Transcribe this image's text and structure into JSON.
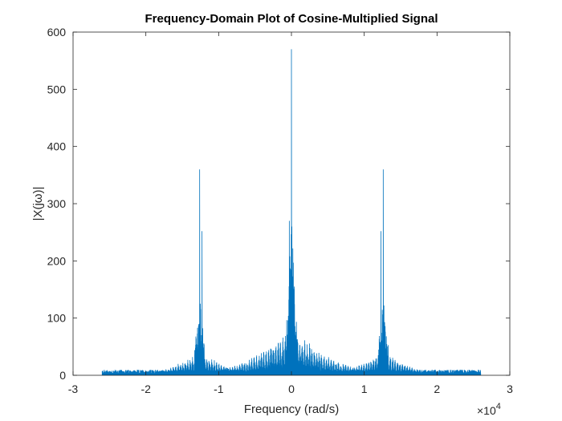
{
  "chart_data": {
    "type": "line",
    "title": "Frequency-Domain Plot of Cosine-Multiplied Signal",
    "xlabel": "Frequency (rad/s)",
    "ylabel": "|X(jω)|",
    "xlim": [
      -3,
      3
    ],
    "ylim": [
      0,
      600
    ],
    "x_scale_factor_label": "×10",
    "x_scale_factor_exponent": "4",
    "xticks": [
      "-3",
      "-2",
      "-1",
      "0",
      "1",
      "2",
      "3"
    ],
    "yticks": [
      "0",
      "100",
      "200",
      "300",
      "400",
      "500",
      "600"
    ],
    "grid": false,
    "series_color": "#0072BD",
    "signal_range": [
      -2.6,
      2.6
    ],
    "lobes": [
      {
        "center": -1.26,
        "peak": 360,
        "second_peak": 252,
        "second_offset": 0.03,
        "near": [
          130,
          100,
          85,
          70,
          60
        ],
        "sidelobe_max": 40,
        "sidelobe_spread": 0.85
      },
      {
        "center": 0.0,
        "peak": 570,
        "second_peak": 270,
        "second_offset": -0.03,
        "near": [
          270,
          250,
          170,
          130,
          100
        ],
        "sidelobe_max": 75,
        "sidelobe_spread": 1.3
      },
      {
        "center": 1.26,
        "peak": 360,
        "second_peak": 252,
        "second_offset": -0.03,
        "near": [
          130,
          100,
          85,
          70,
          60
        ],
        "sidelobe_max": 40,
        "sidelobe_spread": 0.85
      }
    ],
    "floor_level": 8
  }
}
